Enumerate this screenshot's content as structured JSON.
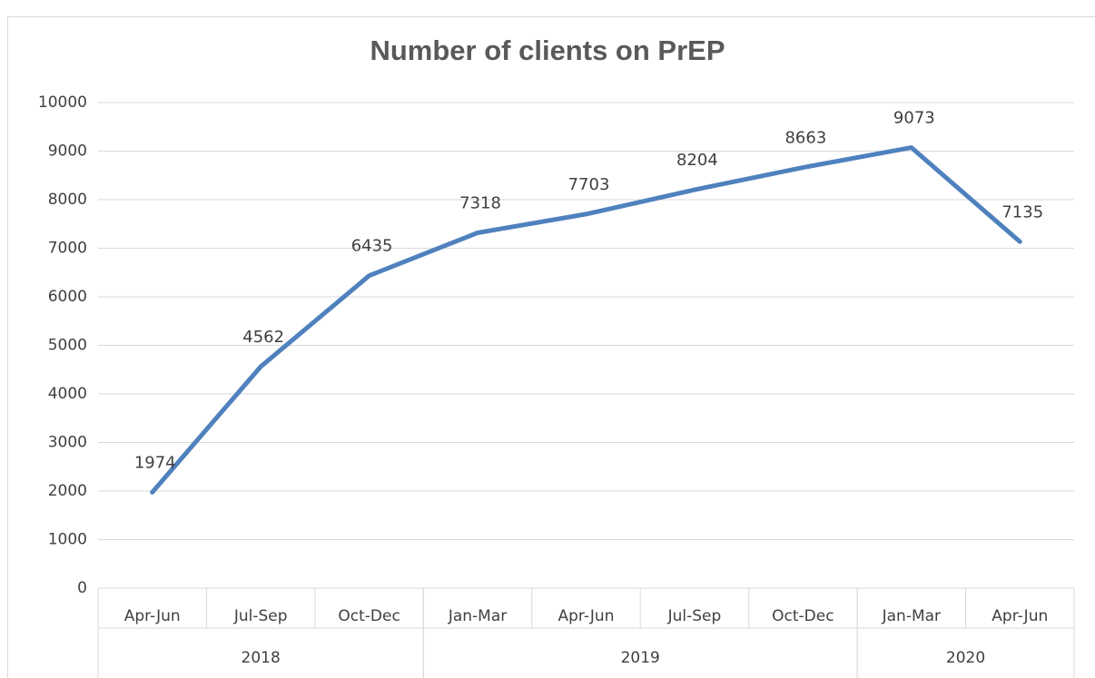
{
  "chart_data": {
    "type": "line",
    "title": "Number of clients on PrEP",
    "categories": [
      "Apr-Jun",
      "Jul-Sep",
      "Oct-Dec",
      "Jan-Mar",
      "Apr-Jun",
      "Jul-Sep",
      "Oct-Dec",
      "Jan-Mar",
      "Apr-Jun"
    ],
    "groups": [
      {
        "label": "2018",
        "count": 3
      },
      {
        "label": "2019",
        "count": 4
      },
      {
        "label": "2020",
        "count": 2
      }
    ],
    "values": [
      1974,
      4562,
      6435,
      7318,
      7703,
      8204,
      8663,
      9073,
      7135
    ],
    "color": "#4f81bd",
    "ylim": [
      0,
      10000
    ],
    "yticks": [
      0,
      1000,
      2000,
      3000,
      4000,
      5000,
      6000,
      7000,
      8000,
      9000,
      10000
    ],
    "grid": true
  }
}
